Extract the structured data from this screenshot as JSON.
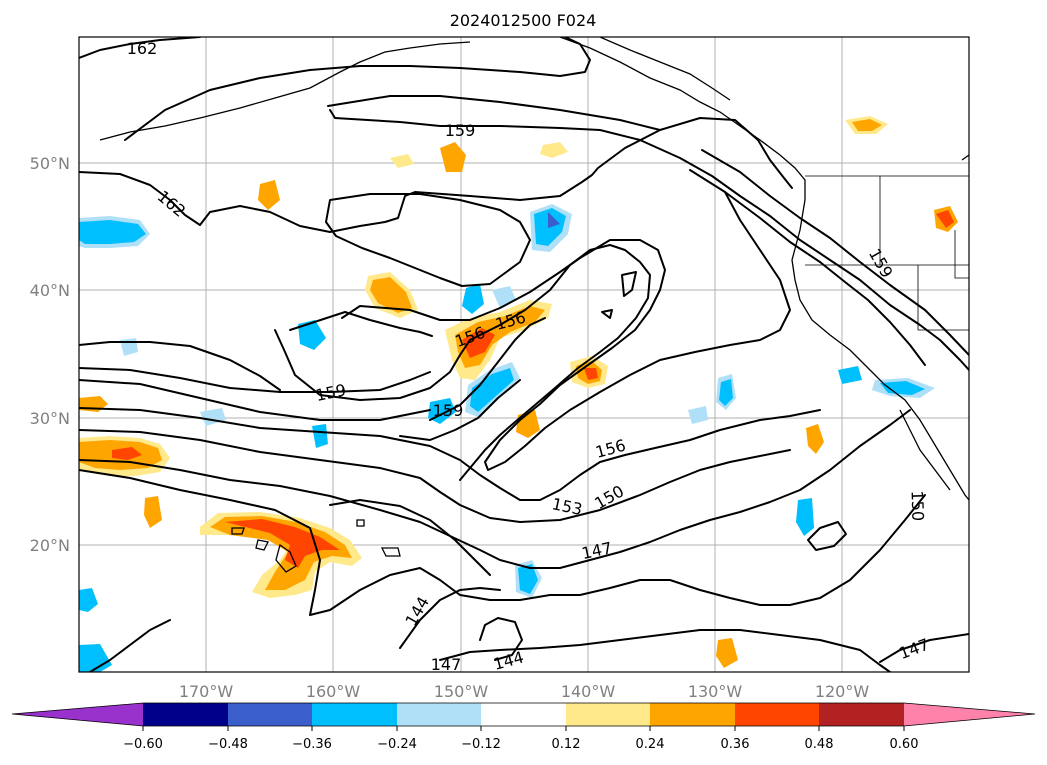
{
  "title": "2024012500 F024",
  "map": {
    "lon_labels": [
      "170°W",
      "160°W",
      "150°W",
      "140°W",
      "130°W",
      "120°W"
    ],
    "lat_labels": [
      "50°N",
      "40°N",
      "30°N",
      "20°N"
    ],
    "contour_labels": [
      "162",
      "162",
      "159",
      "159",
      "159",
      "159",
      "156",
      "156",
      "156",
      "153",
      "150",
      "150",
      "147",
      "147",
      "147",
      "144",
      "144"
    ]
  },
  "colorbar": {
    "ticks": [
      "−0.60",
      "−0.48",
      "−0.36",
      "−0.24",
      "−0.12",
      "0.12",
      "0.24",
      "0.36",
      "0.48",
      "0.60"
    ],
    "colors": [
      "#9932CC",
      "#00008B",
      "#3A5FCD",
      "#00BFFF",
      "#B0E0F8",
      "#FFFFFF",
      "#FFE98A",
      "#FFA500",
      "#FF4500",
      "#B22222",
      "#FF82AB"
    ]
  }
}
